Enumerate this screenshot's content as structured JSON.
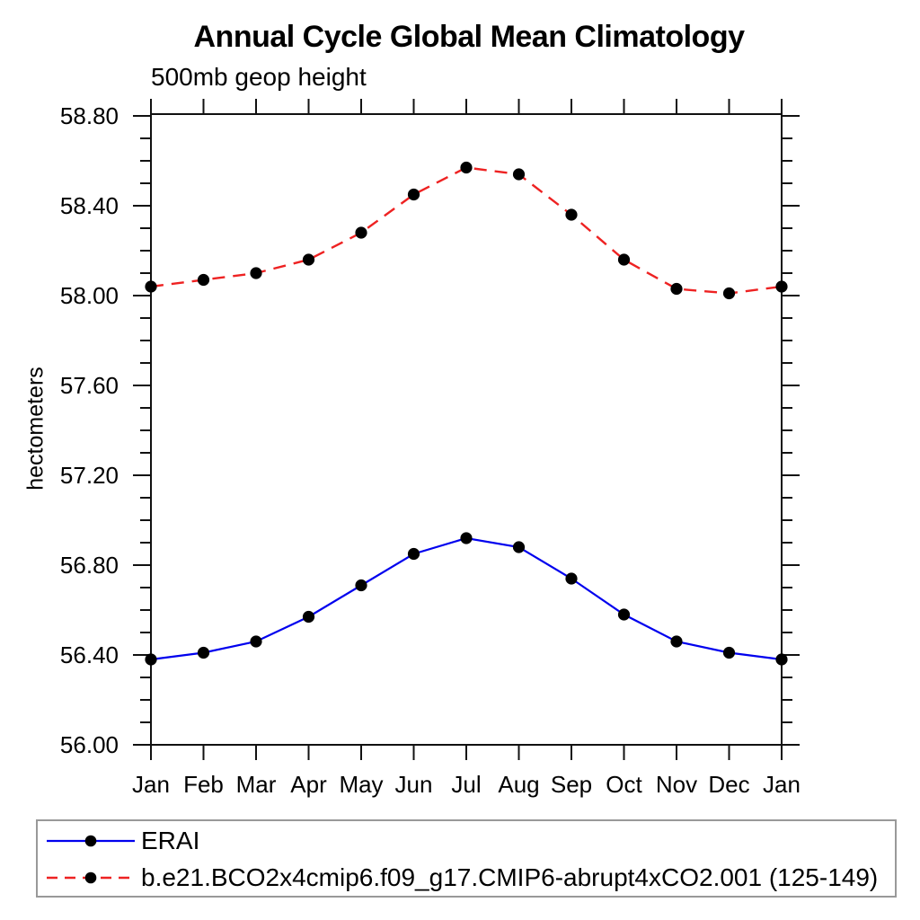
{
  "title": "Annual Cycle Global Mean Climatology",
  "subtitle": "500mb geop height",
  "y_axis": {
    "label": "hectometers",
    "tick_labels": [
      "56.00",
      "56.40",
      "56.80",
      "57.20",
      "57.60",
      "58.00",
      "58.40",
      "58.80"
    ],
    "minor_step": 0.1,
    "major_step": 0.4
  },
  "x_axis": {
    "labels": [
      "Jan",
      "Feb",
      "Mar",
      "Apr",
      "May",
      "Jun",
      "Jul",
      "Aug",
      "Sep",
      "Oct",
      "Nov",
      "Dec",
      "Jan"
    ]
  },
  "colors": {
    "erai_line": "#0000ee",
    "model_line": "#ee2222",
    "marker": "#000000",
    "axis": "#111111",
    "legend_border": "#999999"
  },
  "chart_data": {
    "type": "line",
    "title": "Annual Cycle Global Mean Climatology",
    "subtitle": "500mb geop height",
    "xlabel": "",
    "ylabel": "hectometers",
    "x": [
      "Jan",
      "Feb",
      "Mar",
      "Apr",
      "May",
      "Jun",
      "Jul",
      "Aug",
      "Sep",
      "Oct",
      "Nov",
      "Dec",
      "Jan"
    ],
    "ylim": [
      56.0,
      58.81
    ],
    "ytick_labels": [
      "56.00",
      "56.40",
      "56.80",
      "57.20",
      "57.60",
      "58.00",
      "58.40",
      "58.80"
    ],
    "ytick_minor_step": 0.1,
    "grid": false,
    "legend_position": "bottom-left-box",
    "series": [
      {
        "name": "ERAI",
        "color": "#0000ee",
        "line_style": "solid",
        "marker": "filled-circle-black",
        "values": [
          56.38,
          56.41,
          56.46,
          56.57,
          56.71,
          56.85,
          56.92,
          56.88,
          56.74,
          56.58,
          56.46,
          56.41,
          56.38
        ]
      },
      {
        "name": "b.e21.BCO2x4cmip6.f09_g17.CMIP6-abrupt4xCO2.001 (125-149)",
        "color": "#ee2222",
        "line_style": "dashed",
        "marker": "filled-circle-black",
        "values": [
          58.04,
          58.07,
          58.1,
          58.16,
          58.28,
          58.45,
          58.57,
          58.54,
          58.36,
          58.16,
          58.03,
          58.01,
          58.04
        ]
      }
    ]
  }
}
